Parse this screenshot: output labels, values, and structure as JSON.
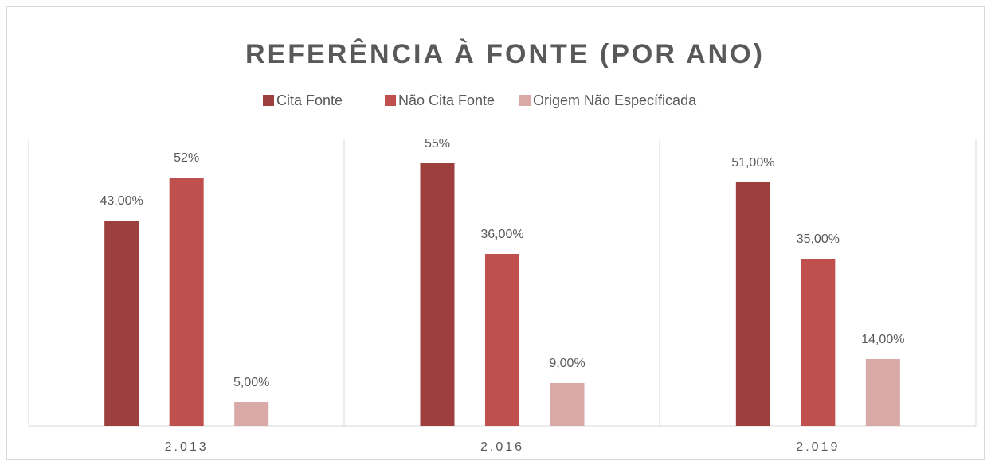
{
  "chart_data": {
    "type": "bar",
    "title": "REFERÊNCIA À FONTE (POR ANO)",
    "categories": [
      "2.013",
      "2.016",
      "2.019"
    ],
    "series": [
      {
        "name": "Cita Fonte",
        "color": "#9c3f3d",
        "values": [
          43,
          55,
          51
        ],
        "value_labels": [
          "43,00%",
          "55%",
          "51,00%"
        ]
      },
      {
        "name": "Não Cita Fonte",
        "color": "#c0504d",
        "values": [
          52,
          36,
          35
        ],
        "value_labels": [
          "52%",
          "36,00%",
          "35,00%"
        ]
      },
      {
        "name": "Origem Não Específicada",
        "color": "#d9a9a8",
        "values": [
          5,
          9,
          14
        ],
        "value_labels": [
          "5,00%",
          "9,00%",
          "14,00%"
        ]
      }
    ],
    "ylim": [
      0,
      60
    ],
    "legend": "top"
  }
}
